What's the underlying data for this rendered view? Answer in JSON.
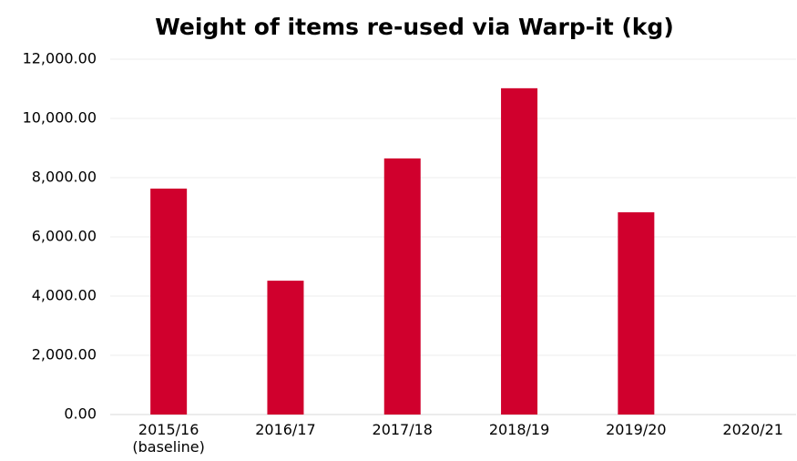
{
  "chart_data": {
    "type": "bar",
    "title": "Weight of items re-used via Warp-it (kg)",
    "categories": [
      "2015/16\n(baseline)",
      "2016/17",
      "2017/18",
      "2018/19",
      "2019/20",
      "2020/21"
    ],
    "values": [
      7630,
      4520,
      8650,
      11020,
      6830,
      null
    ],
    "color": "#d0002d",
    "ylim": [
      0,
      12000
    ],
    "yticks": [
      {
        "value": 0,
        "label": "0.00"
      },
      {
        "value": 2000,
        "label": "2,000.00"
      },
      {
        "value": 4000,
        "label": "4,000.00"
      },
      {
        "value": 6000,
        "label": "6,000.00"
      },
      {
        "value": 8000,
        "label": "8,000.00"
      },
      {
        "value": 10000,
        "label": "10,000.00"
      },
      {
        "value": 12000,
        "label": "12,000.00"
      }
    ],
    "grid": true
  }
}
